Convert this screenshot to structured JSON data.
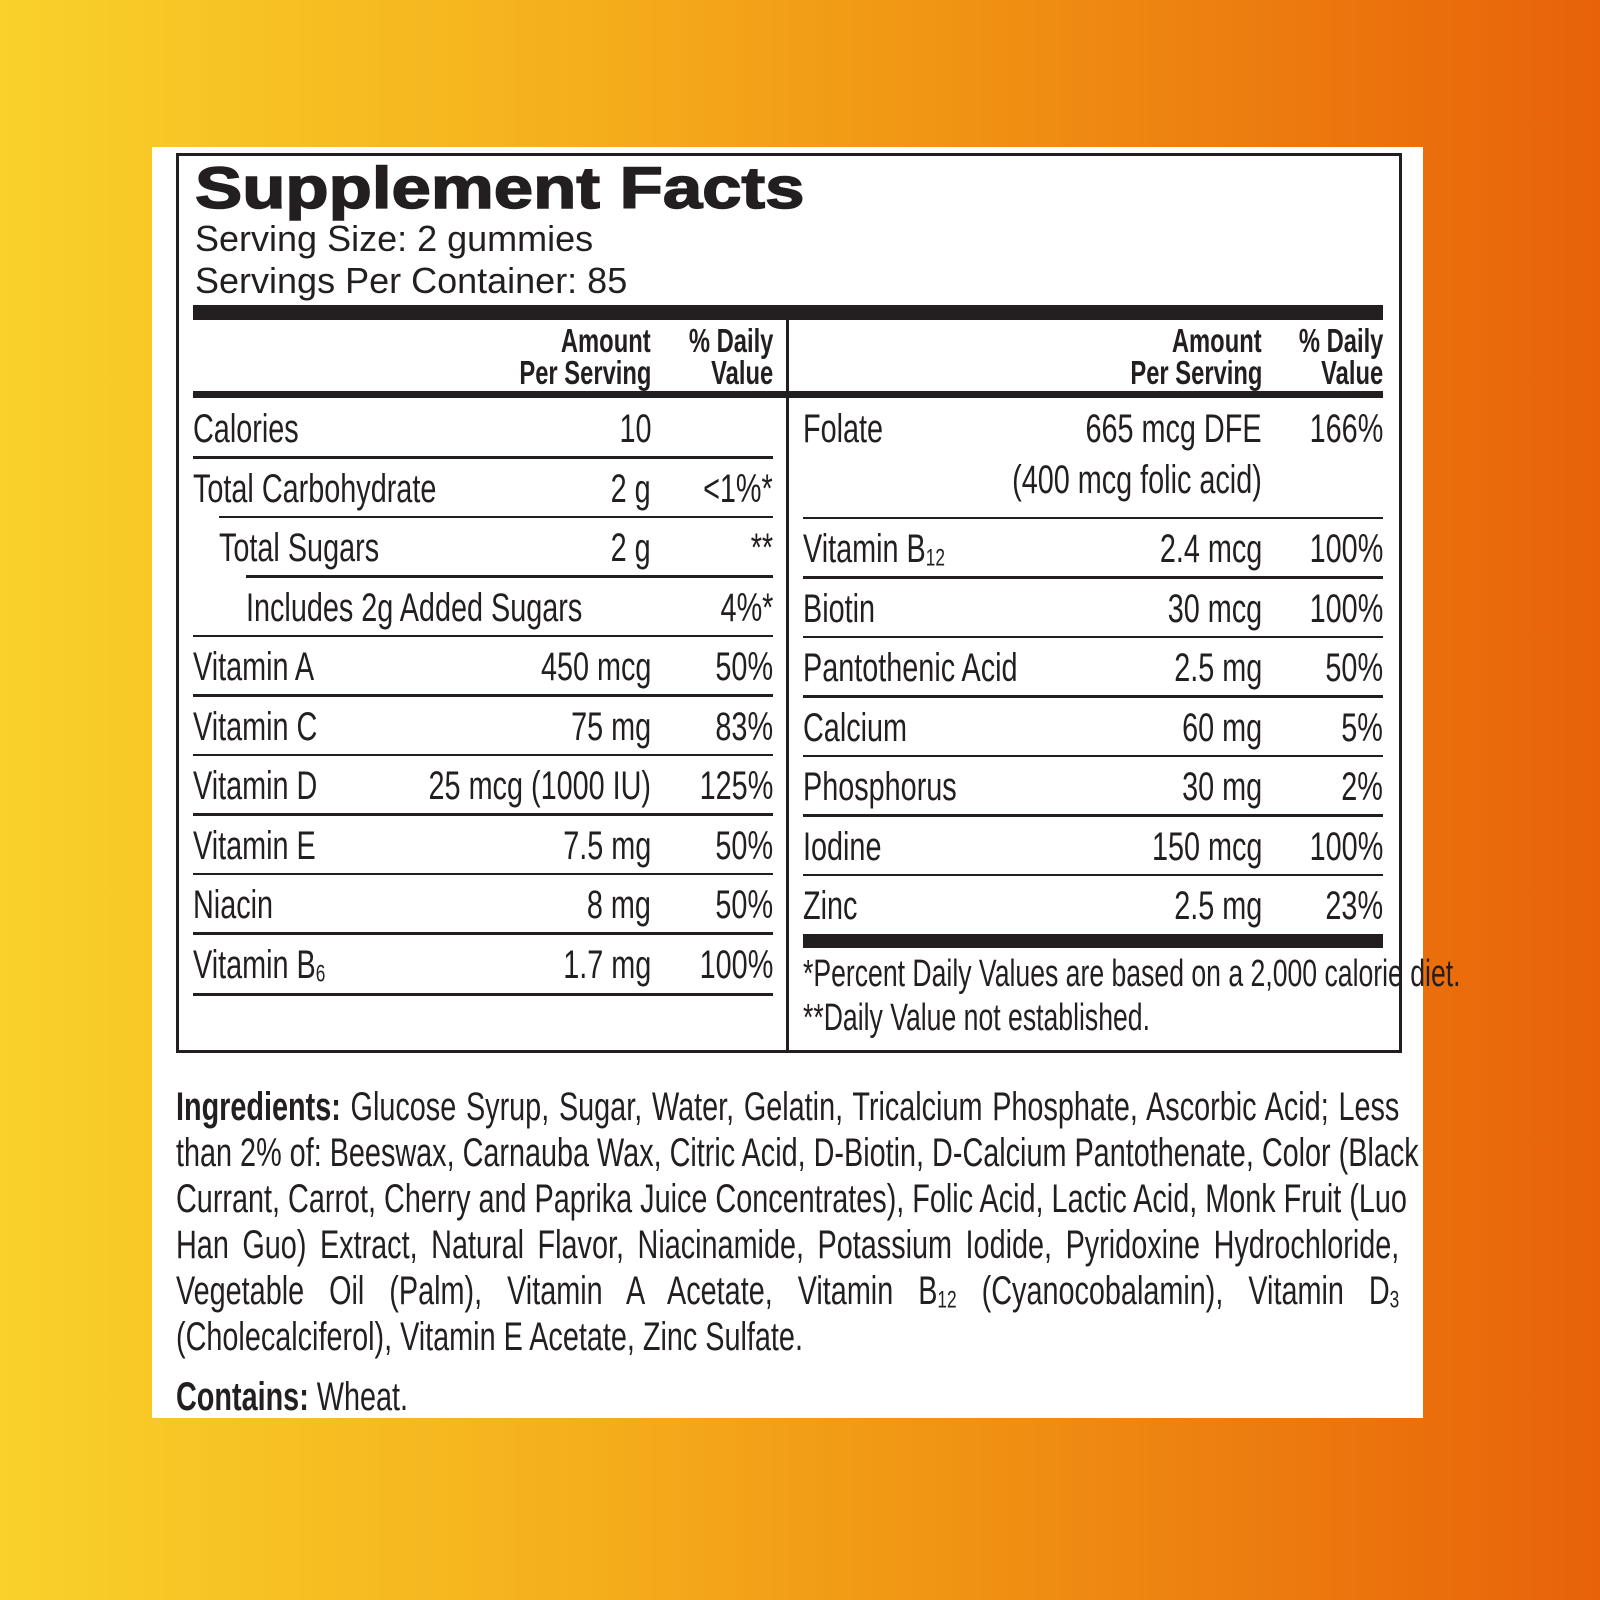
{
  "label": {
    "title": "Supplement Facts",
    "serving_size": "Serving Size:  2 gummies",
    "servings_per_container": "Servings Per Container: 85",
    "header": {
      "amount_line1": "Amount",
      "amount_line2": "Per Serving",
      "dv_line1": "% Daily",
      "dv_line2": "Value"
    },
    "left_rows": [
      {
        "name": "Calories",
        "amount": "10",
        "dv": "",
        "indent": 0
      },
      {
        "name": "Total Carbohydrate",
        "amount": "2 g",
        "dv": "<1%*",
        "indent": 0
      },
      {
        "name": "Total Sugars",
        "amount": "2 g",
        "dv": "**",
        "indent": 1
      },
      {
        "name": "Includes 2g Added Sugars",
        "amount": "",
        "dv": "4%*",
        "indent": 2
      },
      {
        "name": "Vitamin A",
        "amount": "450 mcg",
        "dv": "50%",
        "indent": 0
      },
      {
        "name": "Vitamin C",
        "amount": "75 mg",
        "dv": "83%",
        "indent": 0
      },
      {
        "name": "Vitamin D",
        "amount": "25 mcg (1000 IU)",
        "dv": "125%",
        "indent": 0
      },
      {
        "name": "Vitamin E",
        "amount": "7.5 mg",
        "dv": "50%",
        "indent": 0
      },
      {
        "name": "Niacin",
        "amount": "8 mg",
        "dv": "50%",
        "indent": 0
      },
      {
        "name": "Vitamin B",
        "sub": "6",
        "amount": "1.7 mg",
        "dv": "100%",
        "indent": 0
      }
    ],
    "right_rows": [
      {
        "name": "Folate",
        "amount": "665 mcg DFE",
        "amount2": "(400 mcg folic acid)",
        "dv": "166%"
      },
      {
        "name": "Vitamin B",
        "sub": "12",
        "amount": "2.4 mcg",
        "dv": "100%"
      },
      {
        "name": "Biotin",
        "amount": "30 mcg",
        "dv": "100%"
      },
      {
        "name": "Pantothenic Acid",
        "amount": "2.5 mg",
        "dv": "50%"
      },
      {
        "name": "Calcium",
        "amount": "60 mg",
        "dv": "5%"
      },
      {
        "name": "Phosphorus",
        "amount": "30 mg",
        "dv": "2%"
      },
      {
        "name": "Iodine",
        "amount": "150 mcg",
        "dv": "100%"
      },
      {
        "name": "Zinc",
        "amount": "2.5 mg",
        "dv": "23%"
      }
    ],
    "footnote1": "*Percent Daily Values are based on a 2,000 calorie diet.",
    "footnote2": "**Daily Value not established."
  },
  "ingredients": {
    "label": "Ingredients:",
    "lines": [
      " Glucose Syrup, Sugar, Water, Gelatin, Tricalcium Phosphate, Ascorbic Acid; Less",
      "than 2% of: Beeswax, Carnauba Wax, Citric Acid, D-Biotin, D-Calcium Pantothenate, Color (Black",
      "Currant, Carrot, Cherry and Paprika Juice Concentrates), Folic Acid, Lactic Acid, Monk Fruit (Luo",
      "Han Guo) Extract, Natural Flavor, Niacinamide, Potassium Iodide, Pyridoxine Hydrochloride,",
      "Vegetable Oil (Palm), Vitamin A Acetate, Vitamin B<sub>12</sub> (Cyanocobalamin), Vitamin D<sub>3</sub>",
      "(Cholecalciferol), Vitamin E Acetate, Zinc Sulfate."
    ],
    "contains_label": "Contains:",
    "contains_value": " Wheat."
  },
  "colors": {
    "background_left": "#f9d12b",
    "background_right": "#e8620a",
    "ink": "#231f20"
  }
}
